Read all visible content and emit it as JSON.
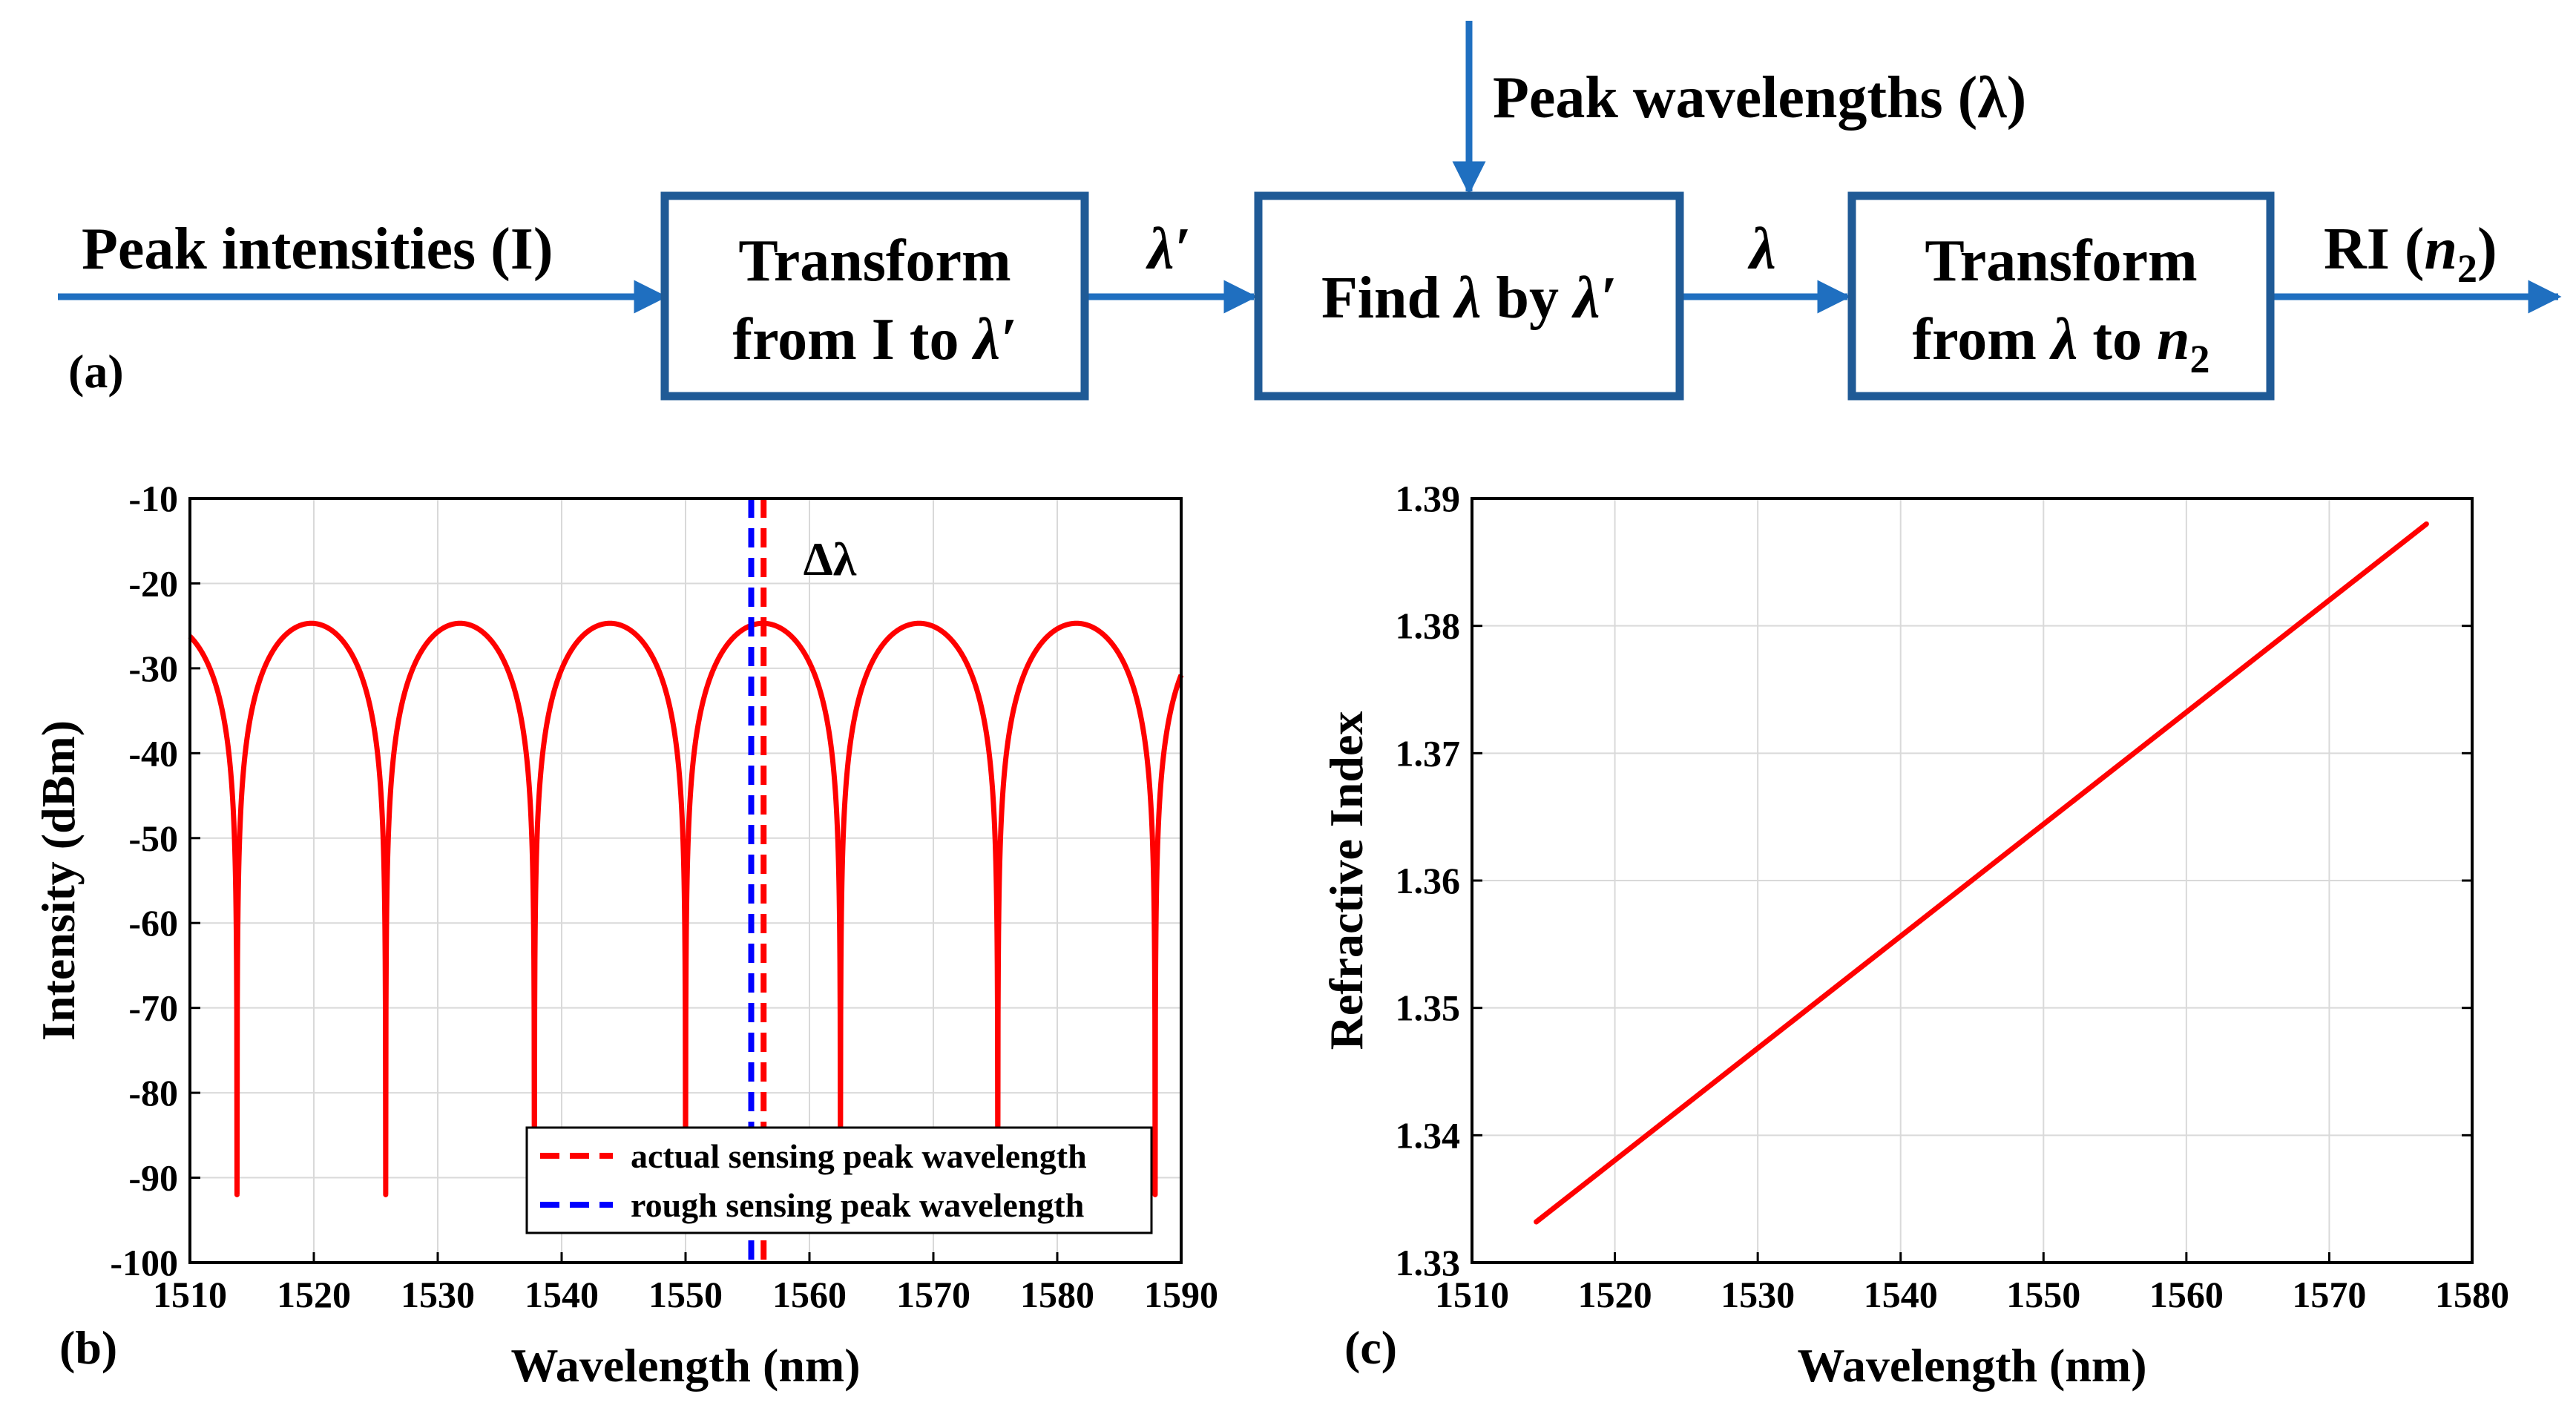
{
  "colors": {
    "arrow": "#1f6fc0",
    "box": "#1f5a96",
    "red": "#ff0000",
    "blue": "#0000ff",
    "grid": "#d9d9d9",
    "text": "#000000"
  },
  "flow": {
    "input_label": "Peak intensities (I)",
    "top_input_label": "Peak wavelengths (λ)",
    "box1": {
      "line1": "Transform",
      "line2_pre": "from I to ",
      "line2_var": "λ′"
    },
    "arrow1_label": "λ′",
    "box2": {
      "pre": "Find ",
      "var1": "λ",
      "mid": " by ",
      "var2": "λ′"
    },
    "arrow2_label": "λ",
    "box3": {
      "line1": "Transform",
      "line2_pre": "from ",
      "line2_var1": "λ",
      "line2_mid": " to ",
      "line2_var2": "n",
      "line2_sub": "2"
    },
    "output": {
      "pre": "RI (",
      "var": "n",
      "sub": "2",
      "post": ")"
    },
    "panel_label": "(a)"
  },
  "chart_data": [
    {
      "type": "line",
      "panel_label": "(b)",
      "xlabel": "Wavelength (nm)",
      "ylabel": "Intensity (dBm)",
      "xlim": [
        1510,
        1590
      ],
      "ylim": [
        -100,
        -10
      ],
      "xticks": [
        1510,
        1520,
        1530,
        1540,
        1550,
        1560,
        1570,
        1580,
        1590
      ],
      "yticks": [
        -10,
        -20,
        -30,
        -40,
        -50,
        -60,
        -70,
        -80,
        -90,
        -100
      ],
      "grid": true,
      "series": [
        {
          "style": "solid",
          "color": "#ff0000",
          "peak_intensity": -24.7,
          "dip_wavelengths": [
            1513.8,
            1525.8,
            1537.8,
            1550.0,
            1562.5,
            1575.2,
            1587.9
          ],
          "dip_minimum": -92
        }
      ],
      "vlines": [
        {
          "name": "actual sensing peak wavelength",
          "x": 1556.3,
          "color": "#ff0000",
          "style": "dashed"
        },
        {
          "name": "rough sensing peak wavelength",
          "x": 1555.3,
          "color": "#0000ff",
          "style": "dashed"
        }
      ],
      "annotation": {
        "text": "Δλ",
        "x": 1559.5,
        "y": -19
      },
      "legend_position": "bottom-right"
    },
    {
      "type": "line",
      "panel_label": "(c)",
      "xlabel": "Wavelength (nm)",
      "ylabel": "Refractive Index",
      "xlim": [
        1510,
        1580
      ],
      "ylim": [
        1.33,
        1.39
      ],
      "xticks": [
        1510,
        1520,
        1530,
        1540,
        1550,
        1560,
        1570,
        1580
      ],
      "yticks": [
        "1.39",
        "1.38",
        "1.37",
        "1.36",
        "1.35",
        "1.34",
        "1.33"
      ],
      "grid": true,
      "series": [
        {
          "color": "#ff0000",
          "x": [
            1514.5,
            1576.8
          ],
          "y": [
            1.3332,
            1.388
          ]
        }
      ]
    }
  ]
}
